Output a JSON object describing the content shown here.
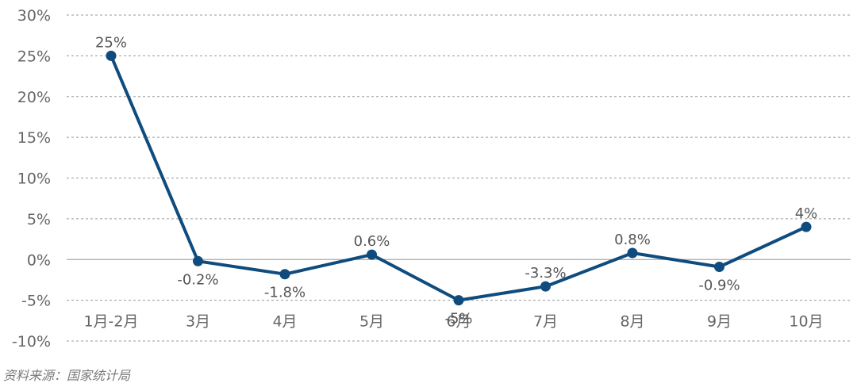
{
  "chart_data": {
    "type": "line",
    "categories": [
      "1月-2月",
      "3月",
      "4月",
      "5月",
      "6月",
      "7月",
      "8月",
      "9月",
      "10月"
    ],
    "values": [
      25,
      -0.2,
      -1.8,
      0.6,
      -5,
      -3.3,
      0.8,
      -0.9,
      4
    ],
    "data_labels": [
      "25%",
      "-0.2%",
      "-1.8%",
      "0.6%",
      "-5%",
      "-3.3%",
      "0.8%",
      "-0.9%",
      "4%"
    ],
    "ylim": [
      -10,
      30
    ],
    "yticks": [
      30,
      25,
      20,
      15,
      10,
      5,
      0,
      -5,
      -10
    ],
    "ytick_labels": [
      "30%",
      "25%",
      "20%",
      "15%",
      "10%",
      "5%",
      "0%",
      "-5%",
      "-10%"
    ],
    "grid": true,
    "title": "",
    "xlabel": "",
    "ylabel": "",
    "colors": {
      "line": "#0f4c7d",
      "grid": "#9a9a9a",
      "zero_line": "#a8a8a8"
    }
  },
  "source": "资料来源：国家统计局"
}
